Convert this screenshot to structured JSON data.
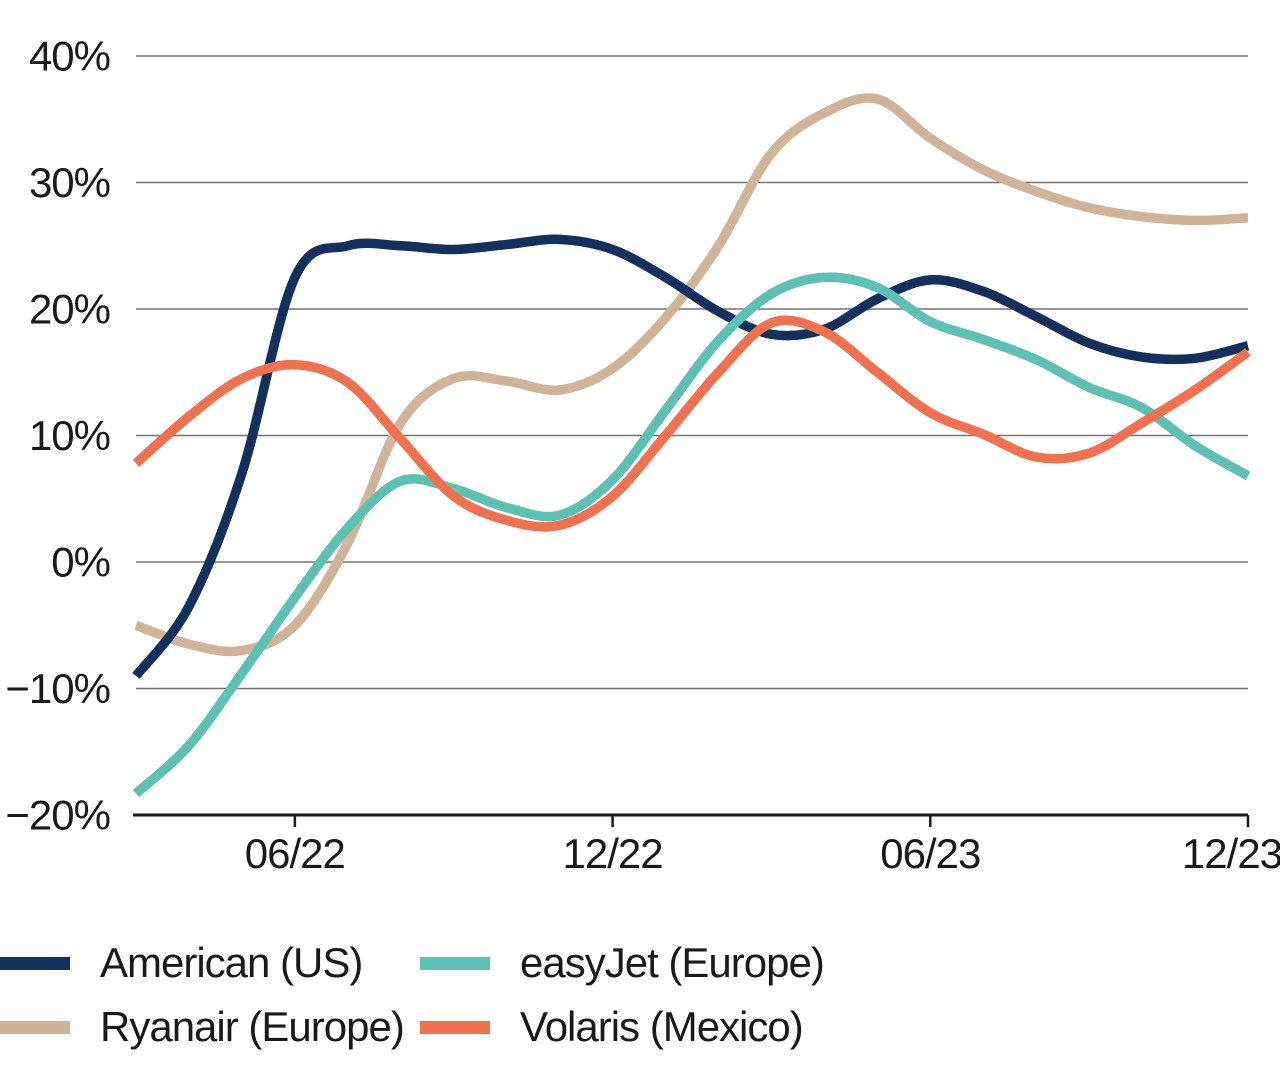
{
  "chart_data": {
    "type": "line",
    "title": "",
    "xlabel": "",
    "ylabel": "",
    "grid": "horizontal",
    "ylim": [
      -20,
      40
    ],
    "y_tick_values": [
      40,
      30,
      20,
      10,
      0,
      -10,
      -20
    ],
    "y_tick_labels": [
      "40%",
      "30%",
      "20%",
      "10%",
      "0%",
      "−10%",
      "−20%"
    ],
    "x_tick_labels": [
      "06/22",
      "12/22",
      "06/23",
      "12/23"
    ],
    "x_tick_month_positions": [
      3,
      9,
      15,
      21
    ],
    "x_total_months": 21,
    "x_sampling": "monthly",
    "legend_position": "bottom-left-two-columns",
    "axis_color": "#1a1a1a",
    "gridline_color": "#737373",
    "series": [
      {
        "name": "American (US)",
        "color": "#14305c",
        "values": [
          -9,
          -3.5,
          7,
          22.5,
          25,
          25,
          24.7,
          25.1,
          25.5,
          24.7,
          22.5,
          19.8,
          18,
          18.4,
          20.8,
          22.3,
          21.4,
          19.4,
          17.3,
          16.2,
          16.1,
          17.1
        ]
      },
      {
        "name": "Ryanair (Europe)",
        "color": "#d0b499",
        "values": [
          -5,
          -6.5,
          -7,
          -5,
          1.5,
          11,
          14.5,
          14.3,
          13.6,
          15.3,
          19.3,
          25,
          32.3,
          35.5,
          36.6,
          33.5,
          31,
          29.3,
          28,
          27.3,
          27,
          27.2
        ]
      },
      {
        "name": "easyJet (Europe)",
        "color": "#5cc0b2",
        "values": [
          -18.3,
          -14.5,
          -8.8,
          -2.8,
          2.7,
          6.4,
          5.8,
          4.3,
          3.7,
          6.5,
          12,
          17.5,
          21.2,
          22.5,
          21.7,
          19,
          17.6,
          16,
          13.8,
          12.2,
          9.2,
          6.8
        ]
      },
      {
        "name": "Volaris (Mexico)",
        "color": "#f0714f",
        "values": [
          7.8,
          11.5,
          14.5,
          15.6,
          14.2,
          9.7,
          5.2,
          3.3,
          2.9,
          5.2,
          10,
          15,
          18.9,
          18.2,
          15,
          11.8,
          10.1,
          8.3,
          8.6,
          11,
          13.6,
          16.6
        ]
      }
    ]
  }
}
